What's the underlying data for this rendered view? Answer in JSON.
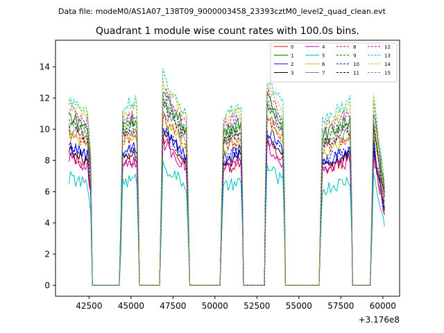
{
  "chart_data": {
    "type": "line",
    "suptitle": "Data file: modeM0/AS1A07_138T09_9000003458_23393cztM0_level2_quad_clean.evt",
    "title": "Quadrant 1 module wise count rates with 100.0s bins.",
    "xlabel": "",
    "ylabel": "",
    "x_offset_label": "+3.176e8",
    "xlim": [
      40500,
      61000
    ],
    "ylim": [
      -0.7,
      15.7
    ],
    "x_ticks": [
      42500,
      45000,
      47500,
      50000,
      52500,
      55000,
      57500,
      60000
    ],
    "x_tick_labels": [
      "42500",
      "45000",
      "47500",
      "50000",
      "52500",
      "55000",
      "57500",
      "60000"
    ],
    "y_ticks": [
      0,
      2,
      4,
      6,
      8,
      10,
      12,
      14
    ],
    "y_tick_labels": [
      "0",
      "2",
      "4",
      "6",
      "8",
      "10",
      "12",
      "14"
    ],
    "legend_position": "upper-right",
    "shape_x": [
      41300,
      42400,
      42600,
      42700,
      44300,
      44400,
      44500,
      45350,
      45450,
      45500,
      46700,
      46800,
      46900,
      48300,
      48400,
      48500,
      50300,
      50400,
      50500,
      51550,
      51650,
      51700,
      52950,
      53000,
      53100,
      54050,
      54150,
      54200,
      56200,
      56300,
      56400,
      58050,
      58150,
      58200,
      59250,
      59350,
      59450,
      60100
    ],
    "shape_y": [
      1.0,
      0.93,
      0.7,
      0.0,
      0.0,
      0.4,
      0.96,
      0.98,
      0.4,
      0.0,
      0.0,
      0.5,
      1.12,
      0.92,
      0.5,
      0.0,
      0.0,
      0.45,
      0.9,
      0.96,
      0.45,
      0.0,
      0.0,
      0.5,
      1.1,
      0.96,
      0.45,
      0.0,
      0.0,
      0.45,
      0.88,
      0.98,
      0.45,
      0.0,
      0.0,
      0.5,
      1.02,
      0.55
    ],
    "series": [
      {
        "name": "0",
        "color": "#e00000",
        "dash": "solid",
        "base": 8.3
      },
      {
        "name": "1",
        "color": "#008000",
        "dash": "solid",
        "base": 10.9
      },
      {
        "name": "2",
        "color": "#0000ff",
        "dash": "solid",
        "base": 9.0
      },
      {
        "name": "3",
        "color": "#000000",
        "dash": "solid",
        "base": 8.7
      },
      {
        "name": "4",
        "color": "#bf00bf",
        "dash": "solid",
        "base": 8.2
      },
      {
        "name": "5",
        "color": "#00c0c0",
        "dash": "solid",
        "base": 6.9
      },
      {
        "name": "6",
        "color": "#c0c000",
        "dash": "solid",
        "base": 9.6
      },
      {
        "name": "7",
        "color": "#808080",
        "dash": "solid",
        "base": 10.1
      },
      {
        "name": "8",
        "color": "#e00000",
        "dash": "dashed",
        "base": 9.8
      },
      {
        "name": "9",
        "color": "#008000",
        "dash": "dashed",
        "base": 10.6
      },
      {
        "name": "10",
        "color": "#0000ff",
        "dash": "dashed",
        "base": 8.9
      },
      {
        "name": "11",
        "color": "#000000",
        "dash": "dashed",
        "base": 10.3
      },
      {
        "name": "12",
        "color": "#bf00bf",
        "dash": "dashed",
        "base": 11.3
      },
      {
        "name": "13",
        "color": "#00c0c0",
        "dash": "dashed",
        "base": 12.0
      },
      {
        "name": "14",
        "color": "#c0c000",
        "dash": "dashed",
        "base": 11.6
      },
      {
        "name": "15",
        "color": "#808080",
        "dash": "dashed",
        "base": 10.7
      }
    ]
  }
}
